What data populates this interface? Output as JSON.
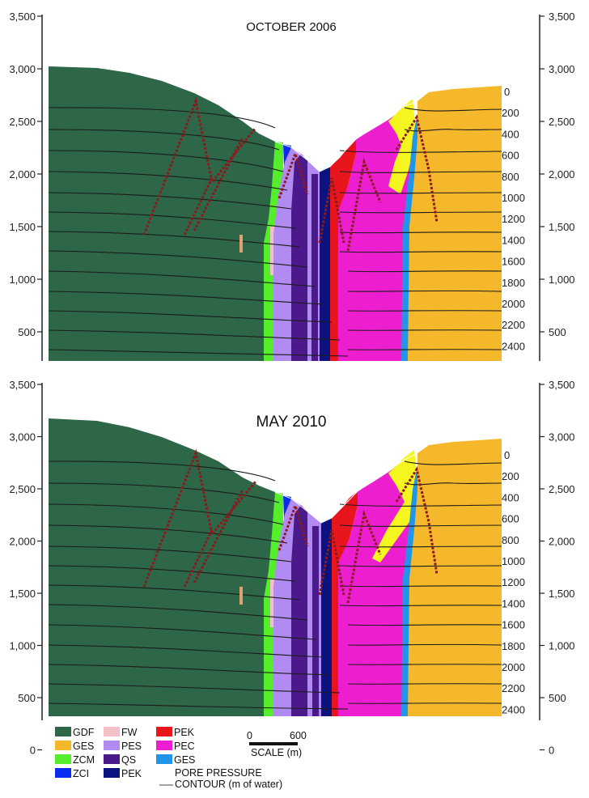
{
  "panels": [
    {
      "title": "OCTOBER 2006",
      "title_size": "small"
    },
    {
      "title": "MAY 2010",
      "title_size": "large"
    }
  ],
  "elevation_ticks": [
    "3,500",
    "3,000",
    "2,500",
    "2,000",
    "1,500",
    "1,000",
    "500"
  ],
  "elevation_ticks_bottom": [
    "3,500",
    "3,000",
    "2,500",
    "2,000",
    "1,500",
    "1,000",
    "500",
    "0"
  ],
  "pressure_contour_labels": [
    "0",
    "200",
    "400",
    "600",
    "800",
    "1000",
    "1200",
    "1400",
    "1600",
    "1800",
    "2000",
    "2200",
    "2400"
  ],
  "units": {
    "GDF": "#2e6748",
    "GES_orange": "#f5b82a",
    "ZCM": "#55ee2a",
    "ZCI": "#0a2cf0",
    "FW": "#f4c0c8",
    "PES": "#b18af2",
    "QS": "#4a1a8a",
    "PEK_navy": "#0b1380",
    "PEK_red": "#e8151c",
    "PEC": "#ec1ecf",
    "GES_blue": "#2196e8",
    "yellow_zone": "#f5f520",
    "faults": "#8b1a1a"
  },
  "legend": {
    "items": [
      {
        "label": "GDF",
        "color": "#2e6748"
      },
      {
        "label": "GES",
        "color": "#f5b82a"
      },
      {
        "label": "ZCM",
        "color": "#55ee2a"
      },
      {
        "label": "ZCI",
        "color": "#0a2cf0"
      },
      {
        "label": "FW",
        "color": "#f4c0c8"
      },
      {
        "label": "PES",
        "color": "#b18af2"
      },
      {
        "label": "QS",
        "color": "#4a1a8a"
      },
      {
        "label": "PEK",
        "color": "#0b1380"
      },
      {
        "label": "PEK",
        "color": "#e8151c"
      },
      {
        "label": "PEC",
        "color": "#ec1ecf"
      },
      {
        "label": "GES",
        "color": "#2196e8"
      }
    ],
    "pore_pressure_line1": "PORE PRESSURE",
    "pore_pressure_line2": "CONTOUR (m of water)"
  },
  "scale_bar": {
    "start": "0",
    "end": "600",
    "caption": "SCALE (m)"
  }
}
